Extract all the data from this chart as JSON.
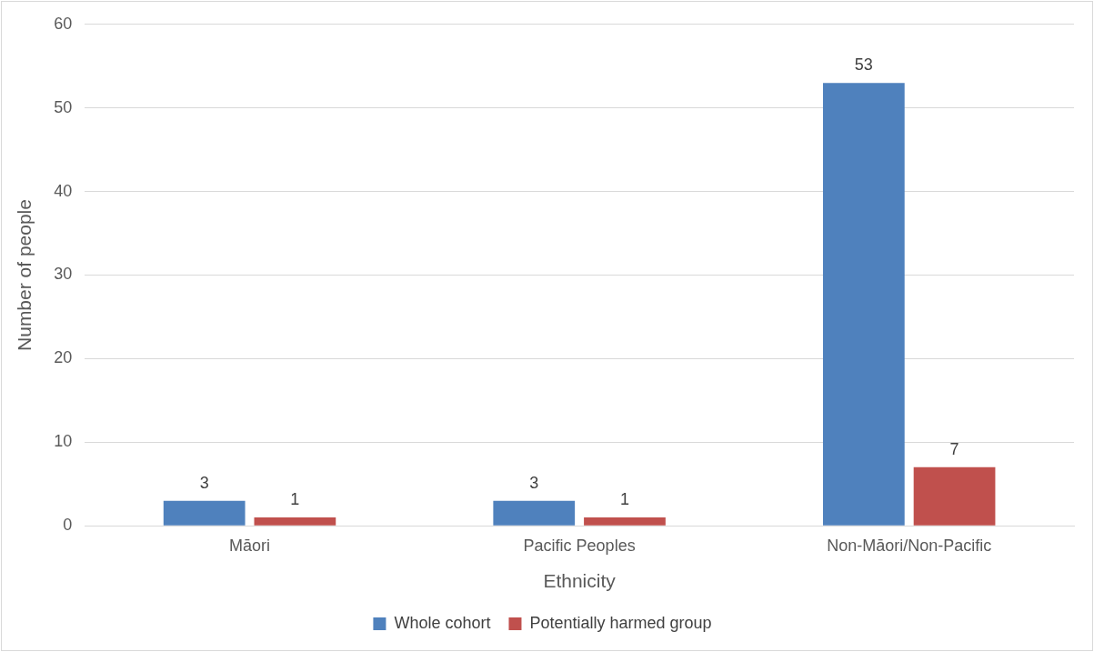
{
  "chart_data": {
    "type": "bar",
    "xlabel": "Ethnicity",
    "ylabel": "Number of people",
    "categories": [
      "Māori",
      "Pacific Peoples",
      "Non-Māori/Non-Pacific"
    ],
    "series": [
      {
        "name": "Whole cohort",
        "color": "#4f81bd",
        "values": [
          3,
          3,
          53
        ]
      },
      {
        "name": "Potentially harmed group",
        "color": "#c0504d",
        "values": [
          1,
          1,
          7
        ]
      }
    ],
    "ylim": [
      0,
      60
    ],
    "yticks": [
      0,
      10,
      20,
      30,
      40,
      50,
      60
    ],
    "grid": "y",
    "legend": "bottom",
    "data_labels": true
  }
}
